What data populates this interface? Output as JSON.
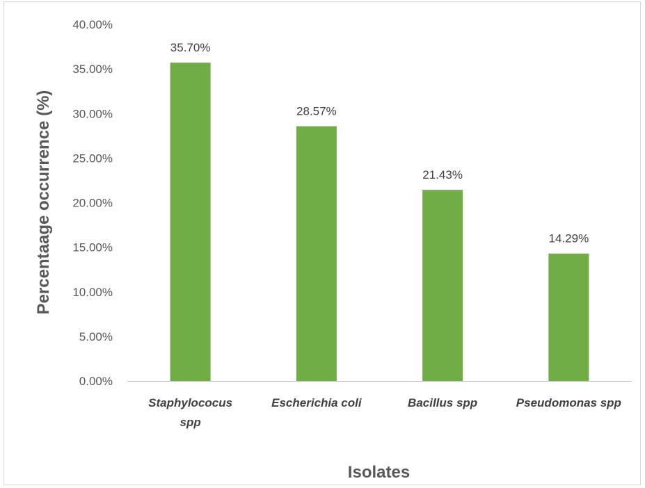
{
  "chart_data": {
    "type": "bar",
    "categories": [
      [
        "Staphylococus",
        "spp"
      ],
      [
        "Escherichia coli"
      ],
      [
        "Bacillus spp"
      ],
      [
        "Pseudomonas spp"
      ]
    ],
    "values": [
      35.7,
      28.57,
      21.43,
      14.29
    ],
    "data_labels": [
      "35.70%",
      "28.57%",
      "21.43%",
      "14.29%"
    ],
    "xlabel": "Isolates",
    "ylabel": "Percentaage occurrence (%)",
    "ylim": [
      0,
      40
    ],
    "yticks": [
      0,
      5,
      10,
      15,
      20,
      25,
      30,
      35,
      40
    ],
    "ytick_labels": [
      "0.00%",
      "5.00%",
      "10.00%",
      "15.00%",
      "20.00%",
      "25.00%",
      "30.00%",
      "35.00%",
      "40.00%"
    ],
    "grid": false,
    "bar_color": "#70ad47"
  }
}
